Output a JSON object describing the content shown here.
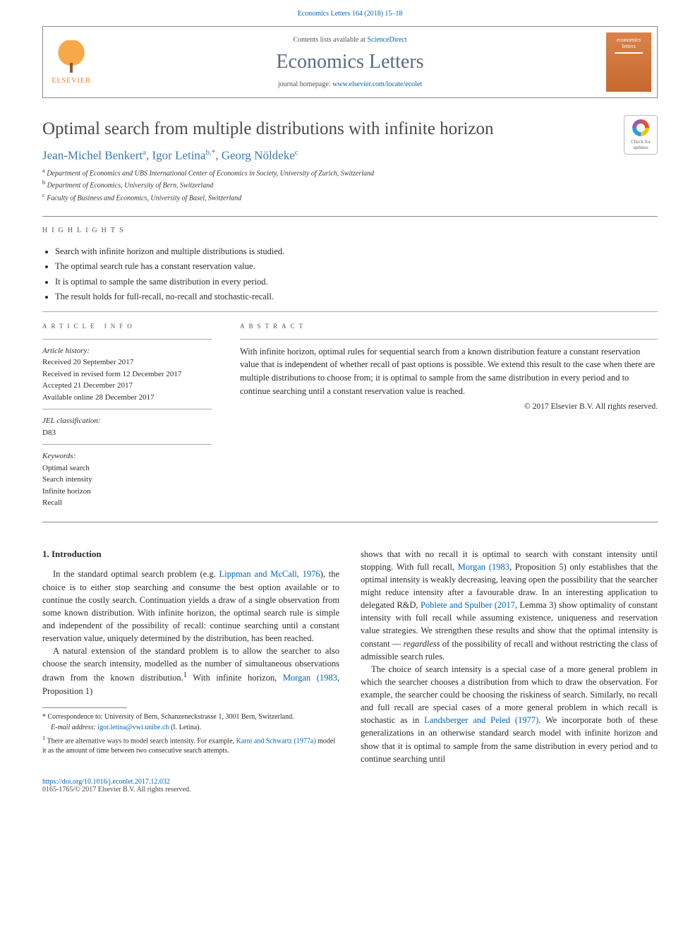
{
  "colors": {
    "link": "#0066b3",
    "journal_title": "#5a6b7a",
    "author": "#3a7ab5",
    "elsevier_orange": "#f47b20",
    "text": "#2a2a2a",
    "rule": "#888888"
  },
  "citation": "Economics Letters 164 (2018) 15–18",
  "header": {
    "contents_prefix": "Contents lists available at ",
    "contents_link": "ScienceDirect",
    "journal": "Economics Letters",
    "homepage_prefix": "journal homepage: ",
    "homepage_link": "www.elsevier.com/locate/ecolet",
    "publisher": "ELSEVIER",
    "cover_line1": "economics",
    "cover_line2": "letters"
  },
  "check_badge": {
    "line1": "Check for",
    "line2": "updates"
  },
  "title": "Optimal search from multiple distributions with infinite horizon",
  "authors_html": "Jean-Michel Benkert|a|, Igor Letina|b,*|, Georg Nöldeke|c",
  "authors": [
    {
      "name": "Jean-Michel Benkert",
      "marks": "a"
    },
    {
      "name": "Igor Letina",
      "marks": "b,*"
    },
    {
      "name": "Georg Nöldeke",
      "marks": "c"
    }
  ],
  "affiliations": [
    {
      "mark": "a",
      "text": "Department of Economics and UBS International Center of Economics in Society, University of Zurich, Switzerland"
    },
    {
      "mark": "b",
      "text": "Department of Economics, University of Bern, Switzerland"
    },
    {
      "mark": "c",
      "text": "Faculty of Business and Economics, University of Basel, Switzerland"
    }
  ],
  "section_labels": {
    "highlights": "highlights",
    "article_info": "article info",
    "abstract": "abstract"
  },
  "highlights": [
    "Search with infinite horizon and multiple distributions is studied.",
    "The optimal search rule has a constant reservation value.",
    "It is optimal to sample the same distribution in every period.",
    "The result holds for full-recall, no-recall and stochastic-recall."
  ],
  "article_info": {
    "history_label": "Article history:",
    "history": [
      "Received 20 September 2017",
      "Received in revised form 12 December 2017",
      "Accepted 21 December 2017",
      "Available online 28 December 2017"
    ],
    "jel_label": "JEL classification:",
    "jel": "D83",
    "keywords_label": "Keywords:",
    "keywords": [
      "Optimal search",
      "Search intensity",
      "Infinite horizon",
      "Recall"
    ]
  },
  "abstract": "With infinite horizon, optimal rules for sequential search from a known distribution feature a constant reservation value that is independent of whether recall of past options is possible. We extend this result to the case when there are multiple distributions to choose from; it is optimal to sample from the same distribution in every period and to continue searching until a constant reservation value is reached.",
  "abstract_copyright": "© 2017 Elsevier B.V. All rights reserved.",
  "body": {
    "section_number": "1.",
    "section_title": "Introduction",
    "p1_a": "In the standard optimal search problem (e.g. ",
    "p1_cite1": "Lippman and McCall, 1976",
    "p1_b": "), the choice is to either stop searching and consume the best option available or to continue the costly search. Continuation yields a draw of a single observation from some known distribution. With infinite horizon, the optimal search rule is simple and independent of the possibility of recall: continue searching until a constant reservation value, uniquely determined by the distribution, has been reached.",
    "p2_a": "A natural extension of the standard problem is to allow the searcher to also choose the search intensity, modelled as the number of simultaneous observations drawn from the known distribution.",
    "p2_sup": "1",
    "p2_b": " With infinite horizon, ",
    "p2_cite1": "Morgan",
    "p2_cite1b": " (1983",
    "p2_c": ", Proposition 1) ",
    "p3_a": "shows that with no recall it is optimal to search with constant intensity until stopping. With full recall, ",
    "p3_cite1": "Morgan",
    "p3_cite1b": " (1983",
    "p3_b": ", Proposition 5) only establishes that the optimal intensity is weakly decreasing, leaving open the possibility that the searcher might reduce intensity after a favourable draw. In an interesting application to delegated R&D, ",
    "p3_cite2": "Poblete and Spulber",
    "p3_cite2b": " (2017",
    "p3_c": ", Lemma 3) show optimality of constant intensity with full recall while assuming existence, uniqueness and reservation value strategies. We strengthen these results and show that the optimal intensity is constant — ",
    "p3_em": "regardless",
    "p3_d": " of the possibility of recall and without restricting the class of admissible search rules.",
    "p4_a": "The choice of search intensity is a special case of a more general problem in which the searcher chooses a distribution from which to draw the observation. For example, the searcher could be choosing the riskiness of search. Similarly, no recall and full recall are special cases of a more general problem in which recall is stochastic as in ",
    "p4_cite1": "Landsberger and Peled (1977)",
    "p4_b": ". We incorporate both of these generalizations in an otherwise standard search model with infinite horizon and show that it is optimal to sample from the same distribution in every period and to continue searching until"
  },
  "footnotes": {
    "corr_mark": "*",
    "corr_text": " Correspondence to: University of Bern, Schanzeneckstrasse 1, 3001 Bern, Switzerland.",
    "email_label": "E-mail address: ",
    "email": "igor.letina@vwi.unibe.ch",
    "email_suffix": " (I. Letina).",
    "fn1_mark": "1",
    "fn1_a": " There are alternative ways to model search intensity. For example, ",
    "fn1_cite": "Karni and Schwartz (1977a)",
    "fn1_b": " model it as the amount of time between two consecutive search attempts."
  },
  "doi": {
    "link": "https://doi.org/10.1016/j.econlet.2017.12.032",
    "line2": "0165-1765/© 2017 Elsevier B.V. All rights reserved."
  }
}
